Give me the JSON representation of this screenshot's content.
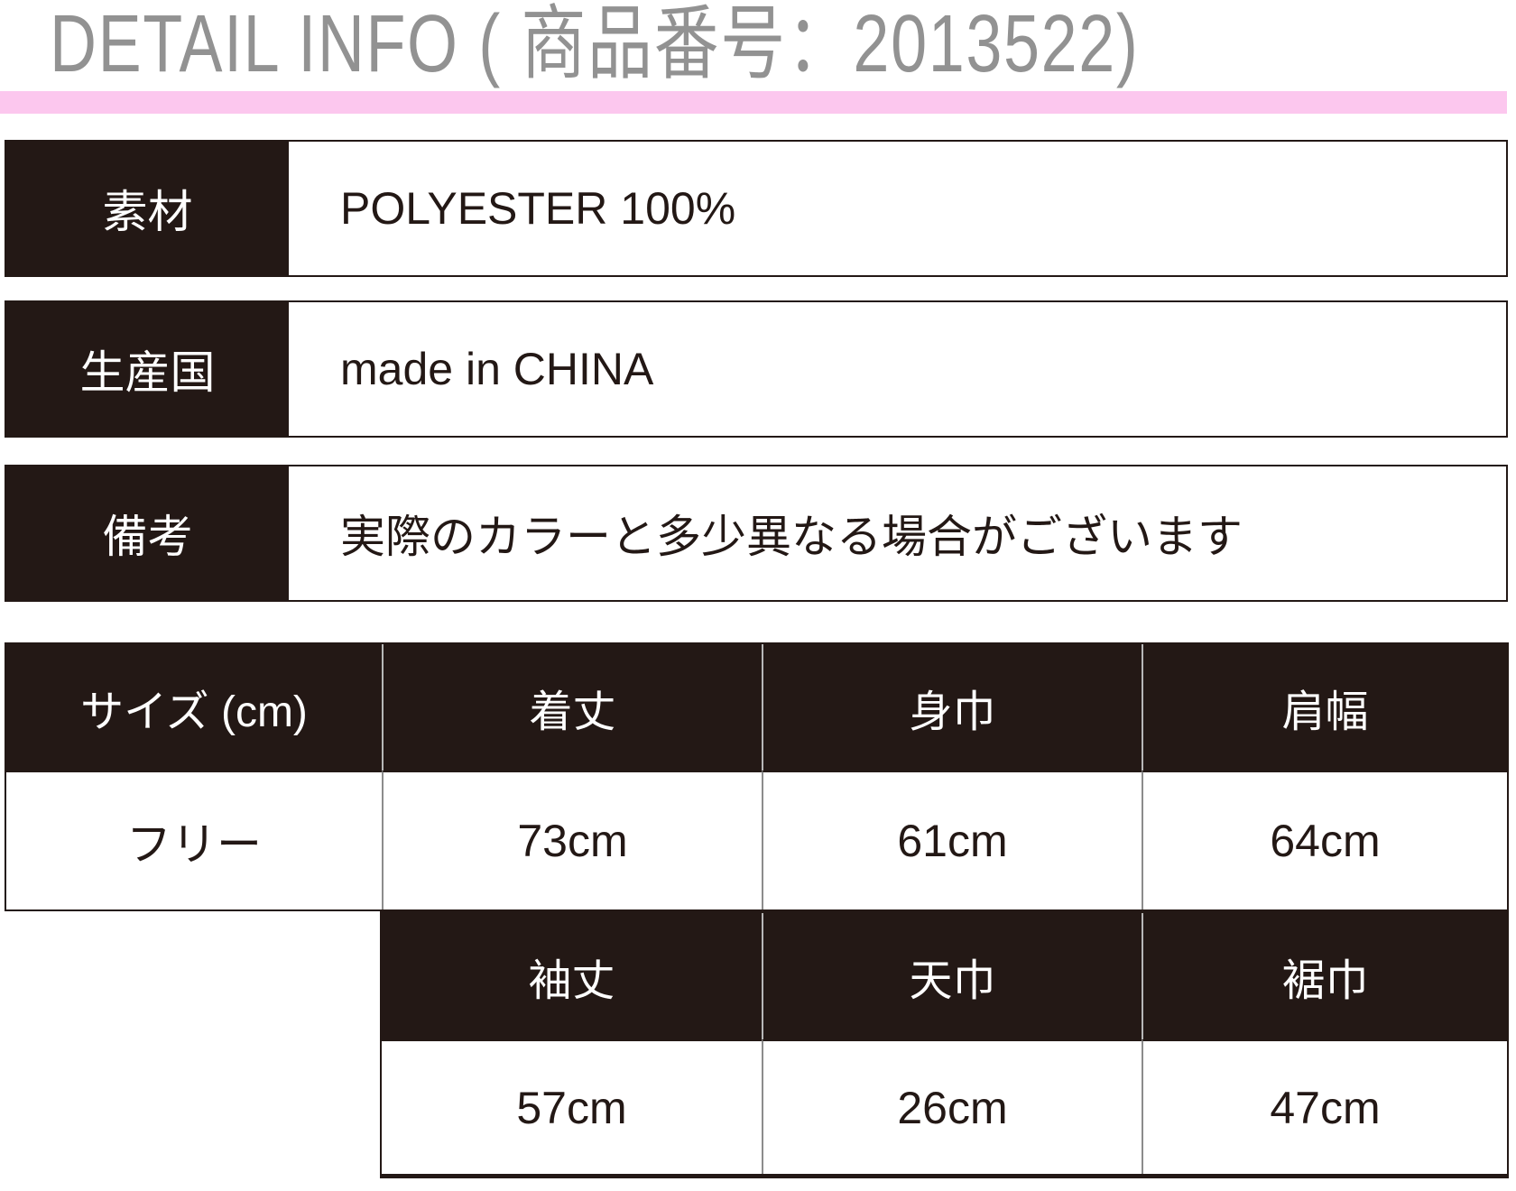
{
  "page": {
    "title": "DETAIL INFO ( 商品番号：2013522)"
  },
  "info_rows": [
    {
      "label": "素材",
      "value": "POLYESTER 100%"
    },
    {
      "label": "生産国",
      "value": "made in CHINA"
    },
    {
      "label": "備考",
      "value": "実際のカラーと多少異なる場合がございます"
    }
  ],
  "size_table": {
    "header_row_top": [
      "サイズ (cm)",
      "着丈",
      "身巾",
      "肩幅"
    ],
    "data_row_top": [
      "フリー",
      "73cm",
      "61cm",
      "64cm"
    ],
    "header_row_bottom": [
      "袖丈",
      "天巾",
      "裾巾"
    ],
    "data_row_bottom": [
      "57cm",
      "26cm",
      "47cm"
    ]
  },
  "colors": {
    "accent_pink": "#fcc7ee",
    "cell_dark": "#231815",
    "title_gray": "#929292"
  }
}
